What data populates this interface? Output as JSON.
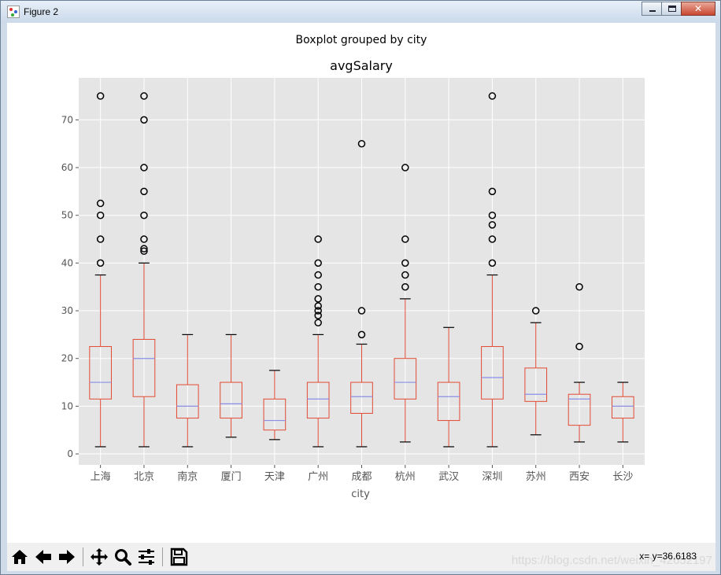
{
  "window": {
    "title": "Figure 2"
  },
  "toolbar": {
    "buttons": [
      {
        "name": "home-button",
        "icon": "home-icon"
      },
      {
        "name": "back-button",
        "icon": "arrow-left-icon"
      },
      {
        "name": "forward-button",
        "icon": "arrow-right-icon"
      },
      {
        "name": "pan-button",
        "icon": "move-icon"
      },
      {
        "name": "zoom-button",
        "icon": "magnifier-icon"
      },
      {
        "name": "configure-subplots-button",
        "icon": "sliders-icon"
      },
      {
        "name": "save-button",
        "icon": "floppy-disk-icon"
      }
    ],
    "coords": "x= y=36.6183",
    "watermark": "https://blog.csdn.net/weixin_42652197"
  },
  "chart_data": {
    "type": "boxplot",
    "suptitle": "Boxplot grouped by city",
    "title": "avgSalary",
    "xlabel": "city",
    "ylabel": "",
    "ylim": [
      -2.3,
      78.8
    ],
    "yticks": [
      0,
      10,
      20,
      30,
      40,
      50,
      60,
      70
    ],
    "grid": true,
    "colors": {
      "box": "#e24a33",
      "median": "#8a8ee8",
      "background": "#e5e5e5",
      "grid": "#ffffff",
      "flier": "#000000"
    },
    "categories": [
      "上海",
      "北京",
      "南京",
      "厦门",
      "天津",
      "广州",
      "成都",
      "杭州",
      "武汉",
      "深圳",
      "苏州",
      "西安",
      "长沙"
    ],
    "boxes": [
      {
        "whislo": 1.5,
        "q1": 11.5,
        "med": 15,
        "q3": 22.5,
        "whishi": 37.5,
        "fliers": [
          40,
          45,
          50,
          52.5,
          75
        ]
      },
      {
        "whislo": 1.5,
        "q1": 12,
        "med": 20,
        "q3": 24,
        "whishi": 40,
        "fliers": [
          42.5,
          43,
          45,
          50,
          55,
          60,
          70,
          75
        ]
      },
      {
        "whislo": 1.5,
        "q1": 7.5,
        "med": 10,
        "q3": 14.5,
        "whishi": 25,
        "fliers": []
      },
      {
        "whislo": 3.5,
        "q1": 7.5,
        "med": 10.5,
        "q3": 15,
        "whishi": 25,
        "fliers": []
      },
      {
        "whislo": 3,
        "q1": 5,
        "med": 7,
        "q3": 11.5,
        "whishi": 17.5,
        "fliers": []
      },
      {
        "whislo": 1.5,
        "q1": 7.5,
        "med": 11.5,
        "q3": 15,
        "whishi": 25,
        "fliers": [
          27.5,
          29,
          30,
          31,
          32.5,
          35,
          37.5,
          40,
          45
        ]
      },
      {
        "whislo": 1.5,
        "q1": 8.5,
        "med": 12,
        "q3": 15,
        "whishi": 23,
        "fliers": [
          25,
          30,
          65
        ]
      },
      {
        "whislo": 2.5,
        "q1": 11.5,
        "med": 15,
        "q3": 20,
        "whishi": 32.5,
        "fliers": [
          35,
          37.5,
          40,
          45,
          60
        ]
      },
      {
        "whislo": 1.5,
        "q1": 7,
        "med": 12,
        "q3": 15,
        "whishi": 26.5,
        "fliers": []
      },
      {
        "whislo": 1.5,
        "q1": 11.5,
        "med": 16,
        "q3": 22.5,
        "whishi": 37.5,
        "fliers": [
          40,
          45,
          48,
          50,
          55,
          75
        ]
      },
      {
        "whislo": 4,
        "q1": 11,
        "med": 12.5,
        "q3": 18,
        "whishi": 27.5,
        "fliers": [
          30
        ]
      },
      {
        "whislo": 2.5,
        "q1": 6,
        "med": 11.5,
        "q3": 12.5,
        "whishi": 15,
        "fliers": [
          22.5,
          35
        ]
      },
      {
        "whislo": 2.5,
        "q1": 7.5,
        "med": 10,
        "q3": 12,
        "whishi": 15,
        "fliers": []
      }
    ]
  }
}
